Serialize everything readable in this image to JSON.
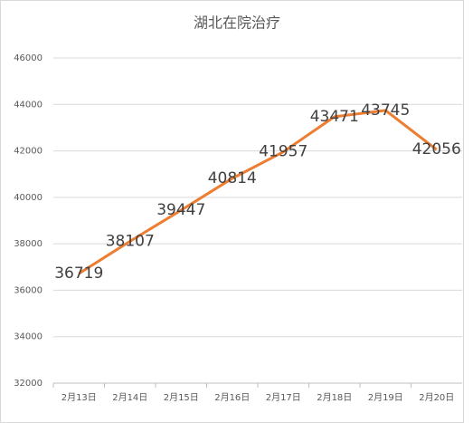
{
  "chart_data": {
    "type": "line",
    "title": "湖北在院治疗",
    "categories": [
      "2月13日",
      "2月14日",
      "2月15日",
      "2月16日",
      "2月17日",
      "2月18日",
      "2月19日",
      "2月20日"
    ],
    "values": [
      36719,
      38107,
      39447,
      40814,
      41957,
      43471,
      43745,
      42056
    ],
    "color": "#ed7d31",
    "ylim": [
      32000,
      46000
    ],
    "yticks": [
      32000,
      34000,
      36000,
      38000,
      40000,
      42000,
      44000,
      46000
    ],
    "grid": true
  }
}
